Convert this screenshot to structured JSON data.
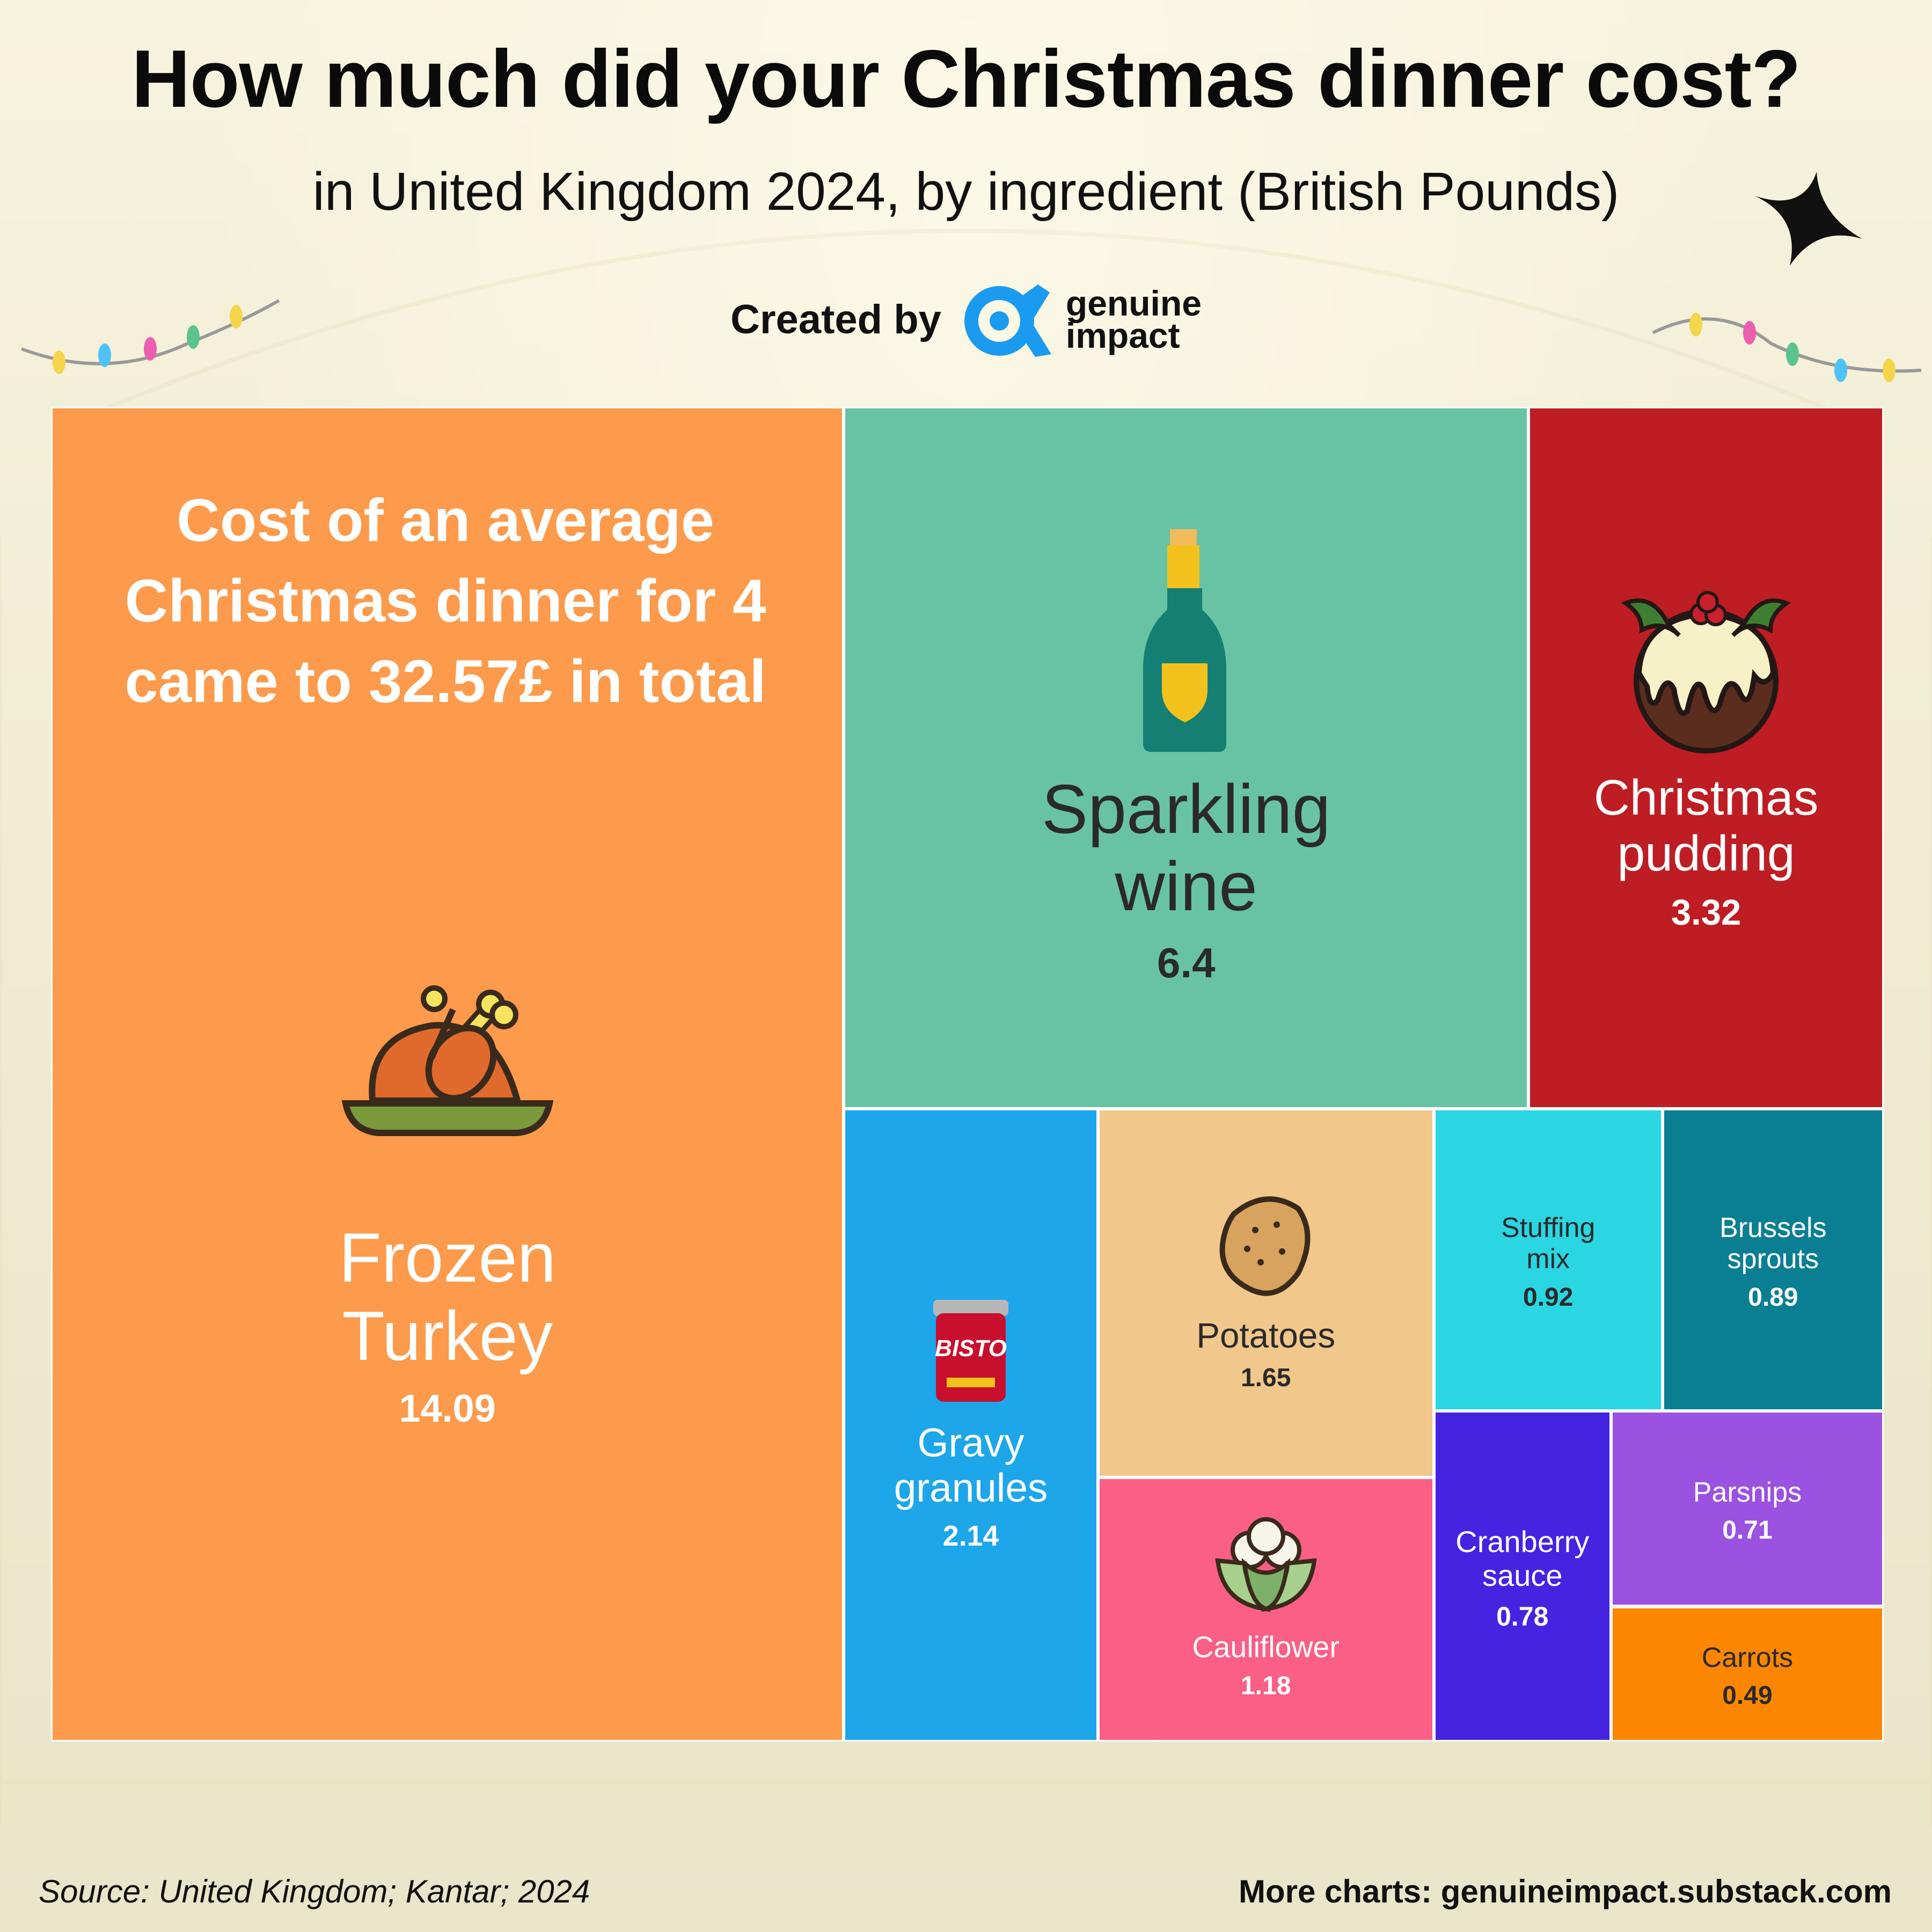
{
  "title": "How much did your Christmas dinner cost?",
  "subtitle": "in United Kingdom 2024, by ingredient (British Pounds)",
  "credit": {
    "label": "Created by",
    "brand_line1": "genuine",
    "brand_line2": "impact"
  },
  "intro": {
    "line1": "Cost of an average",
    "line2": "Christmas dinner for 4",
    "line3": "came to 32.57£ in total"
  },
  "footer": {
    "source": "Source: United Kingdom; Kantar; 2024",
    "more": "More charts: genuineimpact.substack.com"
  },
  "colors": {
    "brand": "#1a9bf0",
    "background": "#f3efd4"
  },
  "chart_data": {
    "type": "treemap",
    "title": "How much did your Christmas dinner cost?",
    "subtitle": "in United Kingdom 2024, by ingredient (British Pounds)",
    "total": 32.57,
    "items": [
      {
        "label": "Frozen Turkey",
        "value": 14.09,
        "color": "#fe9a4c",
        "text": "#ffffff",
        "icon": "turkey-icon"
      },
      {
        "label": "Sparkling wine",
        "value": 6.4,
        "color": "#67c3a3",
        "text": "#2a2a2a",
        "icon": "wine-bottle-icon"
      },
      {
        "label": "Christmas pudding",
        "value": 3.32,
        "color": "#be1d23",
        "text": "#ffffff",
        "icon": "christmas-pudding-icon"
      },
      {
        "label": "Gravy granules",
        "value": 2.14,
        "color": "#1da6ea",
        "text": "#ffffff",
        "icon": "gravy-tub-icon"
      },
      {
        "label": "Potatoes",
        "value": 1.65,
        "color": "#f1c78c",
        "text": "#2a2a2a",
        "icon": "potato-icon"
      },
      {
        "label": "Cauliflower",
        "value": 1.18,
        "color": "#fc5f85",
        "text": "#ffffff",
        "icon": "cauliflower-icon"
      },
      {
        "label": "Stuffing mix",
        "value": 0.92,
        "color": "#2ad6e2",
        "text": "#2a2a2a",
        "icon": ""
      },
      {
        "label": "Brussels sprouts",
        "value": 0.89,
        "color": "#0a7e93",
        "text": "#ffffff",
        "icon": ""
      },
      {
        "label": "Cranberry sauce",
        "value": 0.78,
        "color": "#4424e0",
        "text": "#ffffff",
        "icon": ""
      },
      {
        "label": "Parsnips",
        "value": 0.71,
        "color": "#9b52e1",
        "text": "#ffffff",
        "icon": ""
      },
      {
        "label": "Carrots",
        "value": 0.49,
        "color": "#fd8601",
        "text": "#2a2a2a",
        "icon": ""
      }
    ]
  }
}
